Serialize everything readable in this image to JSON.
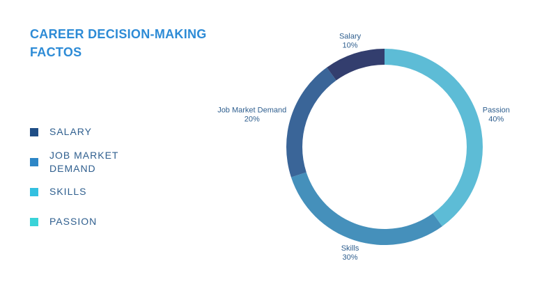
{
  "chart_data": {
    "type": "donut",
    "title": "CAREER DECISION-MAKING FACTOS",
    "categories": [
      "Passion",
      "Skills",
      "Job Market Demand",
      "Salary"
    ],
    "values": [
      40,
      30,
      20,
      10
    ],
    "value_labels": [
      "40%",
      "30%",
      "20%",
      "10%"
    ],
    "colors": [
      "#5dbcd6",
      "#4590bb",
      "#3a6598",
      "#333e6e"
    ],
    "legend": [
      {
        "label": "SALARY",
        "color": "#1f4e86"
      },
      {
        "label": "JOB MARKET DEMAND",
        "color": "#2d86c6"
      },
      {
        "label": "SKILLS",
        "color": "#33c0e0"
      },
      {
        "label": "PASSION",
        "color": "#3ad3d8"
      }
    ]
  }
}
